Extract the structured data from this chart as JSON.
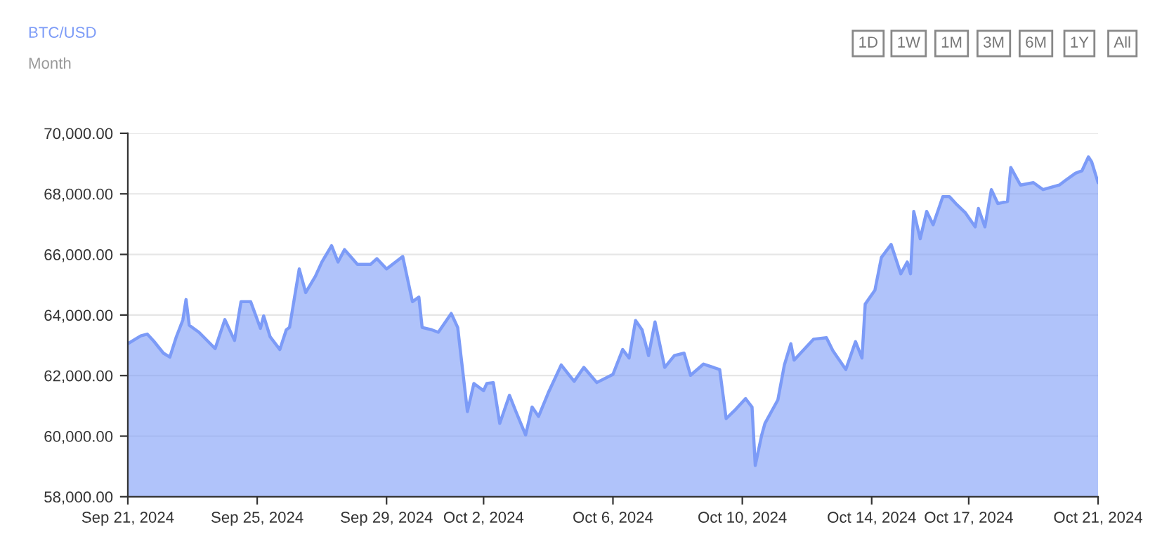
{
  "chart_data": {
    "type": "area",
    "title": "BTC/USD",
    "subtitle": "Month",
    "annotations": [
      "1D",
      "1W",
      "1M",
      "3M",
      "6M",
      "1Y",
      "All"
    ],
    "x": [
      "2024-09-21T00:00",
      "2024-09-21T09:36",
      "2024-09-21T14:24",
      "2024-09-21T19:12",
      "2024-09-22T02:24",
      "2024-09-22T07:12",
      "2024-09-22T12:00",
      "2024-09-22T16:48",
      "2024-09-22T19:12",
      "2024-09-22T21:36",
      "2024-09-23T04:48",
      "2024-09-23T16:48",
      "2024-09-24T00:00",
      "2024-09-24T07:12",
      "2024-09-24T12:00",
      "2024-09-24T19:12",
      "2024-09-25T02:24",
      "2024-09-25T04:48",
      "2024-09-25T09:36",
      "2024-09-25T16:48",
      "2024-09-25T21:36",
      "2024-09-26T00:00",
      "2024-09-26T07:12",
      "2024-09-26T12:00",
      "2024-09-26T19:12",
      "2024-09-27T00:00",
      "2024-09-27T07:12",
      "2024-09-27T12:00",
      "2024-09-27T16:48",
      "2024-09-28T02:24",
      "2024-09-28T12:00",
      "2024-09-28T16:48",
      "2024-09-29T00:00",
      "2024-09-29T12:00",
      "2024-09-29T19:12",
      "2024-09-30T00:00",
      "2024-09-30T02:24",
      "2024-09-30T09:36",
      "2024-09-30T14:24",
      "2024-10-01T00:00",
      "2024-10-01T04:48",
      "2024-10-01T07:12",
      "2024-10-01T12:00",
      "2024-10-01T16:48",
      "2024-10-02T00:00",
      "2024-10-02T02:24",
      "2024-10-02T07:12",
      "2024-10-02T12:00",
      "2024-10-02T19:12",
      "2024-10-03T00:00",
      "2024-10-03T07:12",
      "2024-10-03T12:00",
      "2024-10-03T16:48",
      "2024-10-04T00:00",
      "2024-10-04T09:36",
      "2024-10-04T19:12",
      "2024-10-05T02:24",
      "2024-10-05T12:00",
      "2024-10-06T00:00",
      "2024-10-06T07:12",
      "2024-10-06T12:00",
      "2024-10-06T16:48",
      "2024-10-06T21:36",
      "2024-10-07T02:24",
      "2024-10-07T07:12",
      "2024-10-07T14:24",
      "2024-10-07T21:36",
      "2024-10-08T04:48",
      "2024-10-08T09:36",
      "2024-10-08T19:12",
      "2024-10-09T07:12",
      "2024-10-09T12:00",
      "2024-10-09T19:12",
      "2024-10-10T02:24",
      "2024-10-10T07:12",
      "2024-10-10T09:36",
      "2024-10-10T14:24",
      "2024-10-10T16:48",
      "2024-10-10T21:36",
      "2024-10-11T02:24",
      "2024-10-11T07:12",
      "2024-10-11T12:00",
      "2024-10-11T14:24",
      "2024-10-11T19:12",
      "2024-10-12T04:48",
      "2024-10-12T14:24",
      "2024-10-12T19:12",
      "2024-10-13T04:48",
      "2024-10-13T12:00",
      "2024-10-13T16:48",
      "2024-10-13T19:12",
      "2024-10-14T02:24",
      "2024-10-14T07:12",
      "2024-10-14T14:24",
      "2024-10-14T21:36",
      "2024-10-15T02:24",
      "2024-10-15T04:48",
      "2024-10-15T07:12",
      "2024-10-15T12:00",
      "2024-10-15T16:48",
      "2024-10-15T21:36",
      "2024-10-16T04:48",
      "2024-10-16T09:36",
      "2024-10-16T14:24",
      "2024-10-16T21:36",
      "2024-10-17T04:48",
      "2024-10-17T07:12",
      "2024-10-17T12:00",
      "2024-10-17T16:48",
      "2024-10-17T21:36",
      "2024-10-18T04:48",
      "2024-10-18T07:12",
      "2024-10-18T14:24",
      "2024-10-19T00:00",
      "2024-10-19T07:12",
      "2024-10-19T19:12",
      "2024-10-20T00:00",
      "2024-10-20T07:12",
      "2024-10-20T12:00",
      "2024-10-20T16:48",
      "2024-10-20T19:12",
      "2024-10-21T00:00"
    ],
    "series": [
      {
        "color": "#7c9bf7",
        "values": [
          63050,
          63310,
          63370,
          63140,
          62740,
          62610,
          63280,
          63830,
          64510,
          63660,
          63430,
          62890,
          63850,
          63160,
          64440,
          64440,
          63560,
          63970,
          63280,
          62860,
          63510,
          63590,
          65520,
          64740,
          65280,
          65750,
          66290,
          65750,
          66160,
          65670,
          65670,
          65860,
          65520,
          65930,
          64440,
          64590,
          63590,
          63510,
          63430,
          64050,
          63590,
          62660,
          60810,
          61740,
          61500,
          61740,
          61770,
          60420,
          61350,
          60810,
          60040,
          60960,
          60650,
          61430,
          62350,
          61810,
          62270,
          61770,
          62040,
          62860,
          62580,
          63820,
          63510,
          62660,
          63770,
          62270,
          62660,
          62740,
          62010,
          62380,
          62200,
          60580,
          60890,
          61240,
          60960,
          59030,
          60040,
          60420,
          60810,
          61200,
          62350,
          63050,
          62510,
          62740,
          63200,
          63250,
          62820,
          62200,
          63120,
          62580,
          64360,
          64820,
          65900,
          66330,
          65360,
          65750,
          65360,
          67420,
          66520,
          67420,
          66980,
          67910,
          67910,
          67680,
          67370,
          66910,
          67520,
          66910,
          68140,
          67680,
          67750,
          68870,
          68290,
          68370,
          68140,
          68290,
          68450,
          68680,
          68760,
          69220,
          69060,
          68370
        ]
      }
    ],
    "xlim": [
      "2024-09-21T00:00",
      "2024-10-21T00:00"
    ],
    "xticks": [
      {
        "value": "2024-09-21",
        "label": "Sep 21, 2024"
      },
      {
        "value": "2024-09-25",
        "label": "Sep 25, 2024"
      },
      {
        "value": "2024-09-29",
        "label": "Sep 29, 2024"
      },
      {
        "value": "2024-10-02",
        "label": "Oct 2, 2024"
      },
      {
        "value": "2024-10-06",
        "label": "Oct 6, 2024"
      },
      {
        "value": "2024-10-10",
        "label": "Oct 10, 2024"
      },
      {
        "value": "2024-10-14",
        "label": "Oct 14, 2024"
      },
      {
        "value": "2024-10-17",
        "label": "Oct 17, 2024"
      },
      {
        "value": "2024-10-21",
        "label": "Oct 21, 2024"
      }
    ],
    "ylim": [
      58000,
      70000
    ],
    "yticks": [
      {
        "value": 58000,
        "label": "58,000.00"
      },
      {
        "value": 60000,
        "label": "60,000.00"
      },
      {
        "value": 62000,
        "label": "62,000.00"
      },
      {
        "value": 64000,
        "label": "64,000.00"
      },
      {
        "value": 66000,
        "label": "66,000.00"
      },
      {
        "value": 68000,
        "label": "68,000.00"
      },
      {
        "value": 70000,
        "label": "70,000.00"
      }
    ],
    "grid": "y",
    "legend": false
  }
}
